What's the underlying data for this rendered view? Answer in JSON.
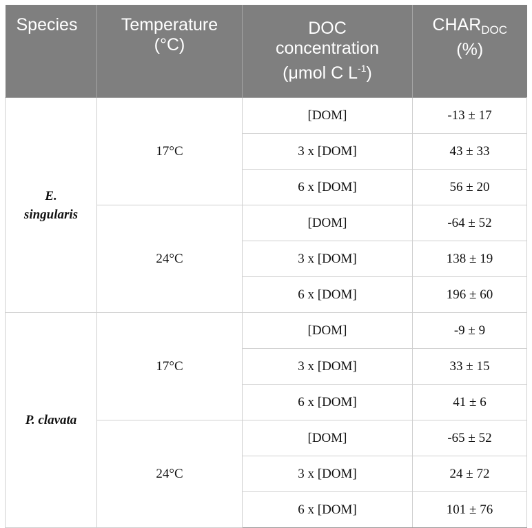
{
  "header": {
    "species": "Species",
    "temperature_line1": "Temperature",
    "temperature_line2": "(°C)",
    "doc_line1": "DOC",
    "doc_line2": "concentration",
    "doc_line3_prefix": "(μmol C L",
    "doc_line3_sup": "-1",
    "doc_line3_suffix": ")",
    "char_main": "CHAR",
    "char_sub": "DOC",
    "char_line2": "(%)"
  },
  "species": [
    {
      "name_line1": "E.",
      "name_line2": "singularis"
    },
    {
      "name_line1": "P. clavata",
      "name_line2": ""
    }
  ],
  "temperatures": [
    "17°C",
    "24°C",
    "17°C",
    "24°C"
  ],
  "rows": [
    {
      "doc": "[DOM]",
      "char": "-13 ± 17"
    },
    {
      "doc": "3 x [DOM]",
      "char": "43 ± 33"
    },
    {
      "doc": "6 x [DOM]",
      "char": "56 ± 20"
    },
    {
      "doc": "[DOM]",
      "char": "-64 ± 52"
    },
    {
      "doc": "3 x [DOM]",
      "char": "138 ± 19"
    },
    {
      "doc": "6 x [DOM]",
      "char": "196 ± 60"
    },
    {
      "doc": "[DOM]",
      "char": "-9 ± 9"
    },
    {
      "doc": "3 x [DOM]",
      "char": "33 ± 15"
    },
    {
      "doc": "6 x [DOM]",
      "char": "41 ± 6"
    },
    {
      "doc": "[DOM]",
      "char": "-65 ± 52"
    },
    {
      "doc": "3 x [DOM]",
      "char": "24 ± 72"
    },
    {
      "doc": "6 x [DOM]",
      "char": "101 ± 76"
    }
  ],
  "colors": {
    "header_bg": "#7f7f7f",
    "header_text": "#ffffff",
    "grid": "#cfcfcf"
  }
}
